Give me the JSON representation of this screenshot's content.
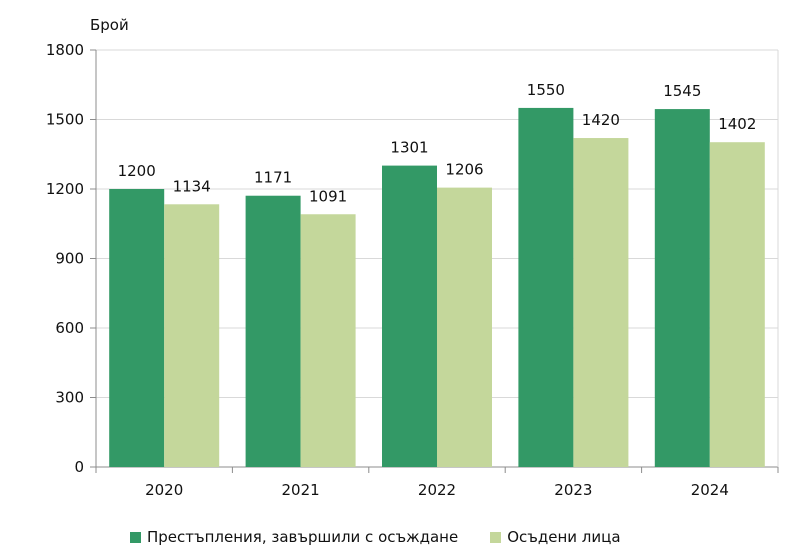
{
  "chart_data": {
    "type": "bar",
    "ylabel": "Брой",
    "xlabel": "",
    "categories": [
      "2020",
      "2021",
      "2022",
      "2023",
      "2024"
    ],
    "ylim": [
      0,
      1800
    ],
    "yticks": [
      0,
      300,
      600,
      900,
      1200,
      1500,
      1800
    ],
    "grid": true,
    "legend_position": "bottom",
    "series": [
      {
        "name": "Престъпления, завършили с осъждане",
        "values": [
          1200,
          1171,
          1301,
          1550,
          1545
        ],
        "color": "#339966"
      },
      {
        "name": "Осъдени лица",
        "values": [
          1134,
          1091,
          1206,
          1420,
          1402
        ],
        "color": "#c4d79b"
      }
    ]
  }
}
